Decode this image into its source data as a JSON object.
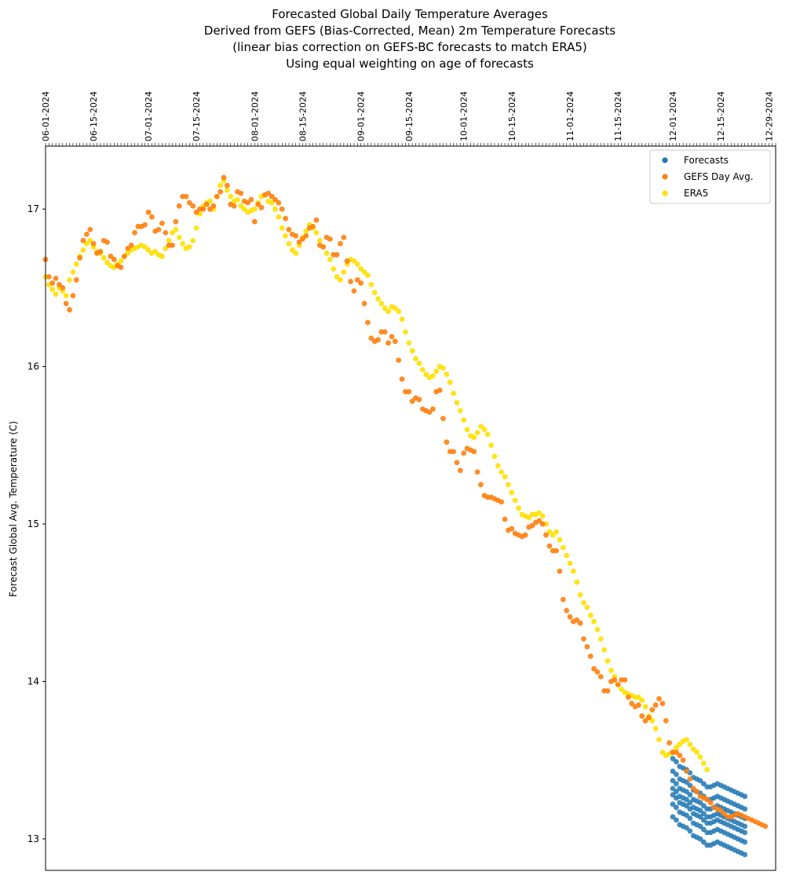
{
  "chart_data": {
    "type": "scatter",
    "title_lines": [
      "Forecasted Global Daily Temperature Averages",
      "Derived from GEFS (Bias-Corrected, Mean) 2m Temperature Forecasts",
      "(linear bias correction on GEFS-BC forecasts to match ERA5)",
      "Using equal weighting on age of forecasts"
    ],
    "xlabel": "",
    "ylabel": "Forecast Global Avg. Temperature (C)",
    "ylim": [
      12.8,
      17.4
    ],
    "yticks": [
      13,
      14,
      15,
      16,
      17
    ],
    "x_start": "2024-06-01",
    "x_end": "2024-12-31",
    "xtick_dates": [
      "2024-06-01",
      "2024-06-15",
      "2024-07-01",
      "2024-07-15",
      "2024-08-01",
      "2024-08-15",
      "2024-09-01",
      "2024-09-15",
      "2024-10-01",
      "2024-10-15",
      "2024-11-01",
      "2024-11-15",
      "2024-12-01",
      "2024-12-15",
      "2024-12-29"
    ],
    "grid": false,
    "legend_position": "top-right",
    "legend": [
      "Forecasts",
      "GEFS Day Avg.",
      "ERA5"
    ],
    "colors": {
      "Forecasts": "#1f77b4",
      "GEFS Day Avg.": "#ff7f0e",
      "ERA5": "#ffe000"
    },
    "series": [
      {
        "name": "ERA5",
        "x_start": "2024-06-01",
        "step_days": 1,
        "values": [
          16.57,
          16.52,
          16.49,
          16.46,
          16.5,
          16.48,
          16.45,
          16.55,
          16.6,
          16.65,
          16.7,
          16.74,
          16.78,
          16.8,
          16.76,
          16.73,
          16.72,
          16.69,
          16.66,
          16.64,
          16.63,
          16.65,
          16.67,
          16.7,
          16.72,
          16.74,
          16.75,
          16.76,
          16.77,
          16.76,
          16.74,
          16.72,
          16.73,
          16.71,
          16.7,
          16.75,
          16.8,
          16.85,
          16.87,
          16.82,
          16.78,
          16.75,
          16.76,
          16.8,
          16.88,
          16.97,
          17.02,
          17.04,
          17.05,
          17.0,
          17.08,
          17.15,
          17.18,
          17.12,
          17.08,
          17.05,
          17.06,
          17.02,
          17.0,
          16.98,
          16.99,
          17.0,
          17.04,
          17.08,
          17.09,
          17.05,
          17.04,
          17.0,
          16.95,
          16.88,
          16.83,
          16.78,
          16.74,
          16.72,
          16.77,
          16.82,
          16.86,
          16.9,
          16.88,
          16.85,
          16.8,
          16.76,
          16.72,
          16.68,
          16.62,
          16.57,
          16.55,
          16.6,
          16.65,
          16.68,
          16.67,
          16.65,
          16.62,
          16.6,
          16.58,
          16.52,
          16.47,
          16.43,
          16.4,
          16.37,
          16.35,
          16.38,
          16.37,
          16.35,
          16.3,
          16.22,
          16.15,
          16.1,
          16.05,
          16.02,
          15.98,
          15.95,
          15.93,
          15.94,
          15.97,
          16.0,
          15.99,
          15.95,
          15.9,
          15.83,
          15.77,
          15.72,
          15.66,
          15.6,
          15.56,
          15.55,
          15.58,
          15.62,
          15.6,
          15.57,
          15.5,
          15.43,
          15.37,
          15.33,
          15.3,
          15.25,
          15.2,
          15.15,
          15.1,
          15.06,
          15.05,
          15.04,
          15.06,
          15.06,
          15.07,
          15.05,
          15.0,
          14.95,
          14.93,
          14.95,
          14.9,
          14.85,
          14.8,
          14.75,
          14.7,
          14.63,
          14.55,
          14.5,
          14.47,
          14.42,
          14.38,
          14.33,
          14.27,
          14.2,
          14.13,
          14.07,
          14.03,
          13.98,
          13.95,
          13.93,
          13.92,
          13.91,
          13.9,
          13.9,
          13.88,
          13.84,
          13.78,
          13.75,
          13.7,
          13.63,
          13.55,
          13.53,
          13.54,
          13.55,
          13.58,
          13.6,
          13.62,
          13.63,
          13.6,
          13.57,
          13.55,
          13.52,
          13.48,
          13.44
        ]
      },
      {
        "name": "GEFS Day Avg.",
        "x_start": "2024-06-01",
        "step_days": 1,
        "values": [
          16.68,
          16.57,
          16.53,
          16.56,
          16.52,
          16.5,
          16.4,
          16.36,
          16.45,
          16.55,
          16.69,
          16.8,
          16.84,
          16.87,
          16.78,
          16.72,
          16.73,
          16.8,
          16.79,
          16.7,
          16.68,
          16.64,
          16.63,
          16.7,
          16.75,
          16.77,
          16.85,
          16.89,
          16.89,
          16.9,
          16.98,
          16.95,
          16.86,
          16.87,
          16.91,
          16.85,
          16.77,
          16.77,
          16.92,
          17.02,
          17.08,
          17.08,
          17.04,
          17.02,
          16.98,
          17.0,
          17.0,
          17.03,
          17.0,
          17.02,
          17.08,
          17.11,
          17.2,
          17.15,
          17.03,
          17.02,
          17.11,
          17.1,
          17.05,
          17.04,
          17.06,
          16.92,
          17.03,
          17.01,
          17.09,
          17.1,
          17.08,
          17.06,
          17.04,
          17.0,
          16.94,
          16.87,
          16.84,
          16.83,
          16.79,
          16.81,
          16.83,
          16.88,
          16.89,
          16.93,
          16.77,
          16.76,
          16.82,
          16.81,
          16.71,
          16.71,
          16.78,
          16.82,
          16.67,
          16.54,
          16.48,
          16.55,
          16.53,
          16.4,
          16.28,
          16.18,
          16.16,
          16.17,
          16.22,
          16.22,
          16.15,
          16.19,
          16.16,
          16.04,
          15.92,
          15.84,
          15.84,
          15.78,
          15.8,
          15.79,
          15.73,
          15.72,
          15.71,
          15.73,
          15.84,
          15.85,
          15.67,
          15.52,
          15.46,
          15.46,
          15.39,
          15.34,
          15.45,
          15.48,
          15.47,
          15.46,
          15.33,
          15.25,
          15.18,
          15.17,
          15.17,
          15.16,
          15.15,
          15.14,
          15.03,
          14.96,
          14.97,
          14.94,
          14.93,
          14.92,
          14.93,
          14.98,
          14.99,
          15.01,
          15.02,
          15.0,
          14.93,
          14.86,
          14.83,
          14.83,
          14.7,
          14.52,
          14.45,
          14.41,
          14.38,
          14.39,
          14.37,
          14.27,
          14.22,
          14.16,
          14.08,
          14.06,
          14.03,
          13.94,
          13.94,
          14.0,
          14.01,
          13.98,
          14.01,
          14.01,
          13.9,
          13.86,
          13.84,
          13.85,
          13.78,
          13.75,
          13.77,
          13.82,
          13.85,
          13.89,
          13.86,
          13.75,
          13.61,
          13.55,
          13.55,
          13.53,
          13.5,
          13.43,
          13.38,
          13.32,
          13.3,
          13.27,
          13.26,
          13.25,
          13.23,
          13.2,
          13.19,
          13.18,
          13.16,
          13.14,
          13.14,
          13.15,
          13.16,
          13.15,
          13.14,
          13.13,
          13.12,
          13.11,
          13.1,
          13.09,
          13.08
        ]
      },
      {
        "name": "Forecasts",
        "x_start": "2024-12-01",
        "step_days": 1,
        "samples_per_day": 7,
        "base_values": [
          13.32,
          13.3,
          13.27,
          13.26,
          13.25,
          13.23,
          13.2,
          13.19,
          13.18,
          13.16,
          13.14,
          13.14,
          13.15,
          13.16,
          13.15,
          13.14,
          13.13,
          13.12,
          13.11,
          13.1,
          13.09,
          13.08
        ],
        "offsets": [
          -0.18,
          -0.1,
          -0.04,
          0.0,
          0.05,
          0.11,
          0.19
        ]
      }
    ]
  }
}
